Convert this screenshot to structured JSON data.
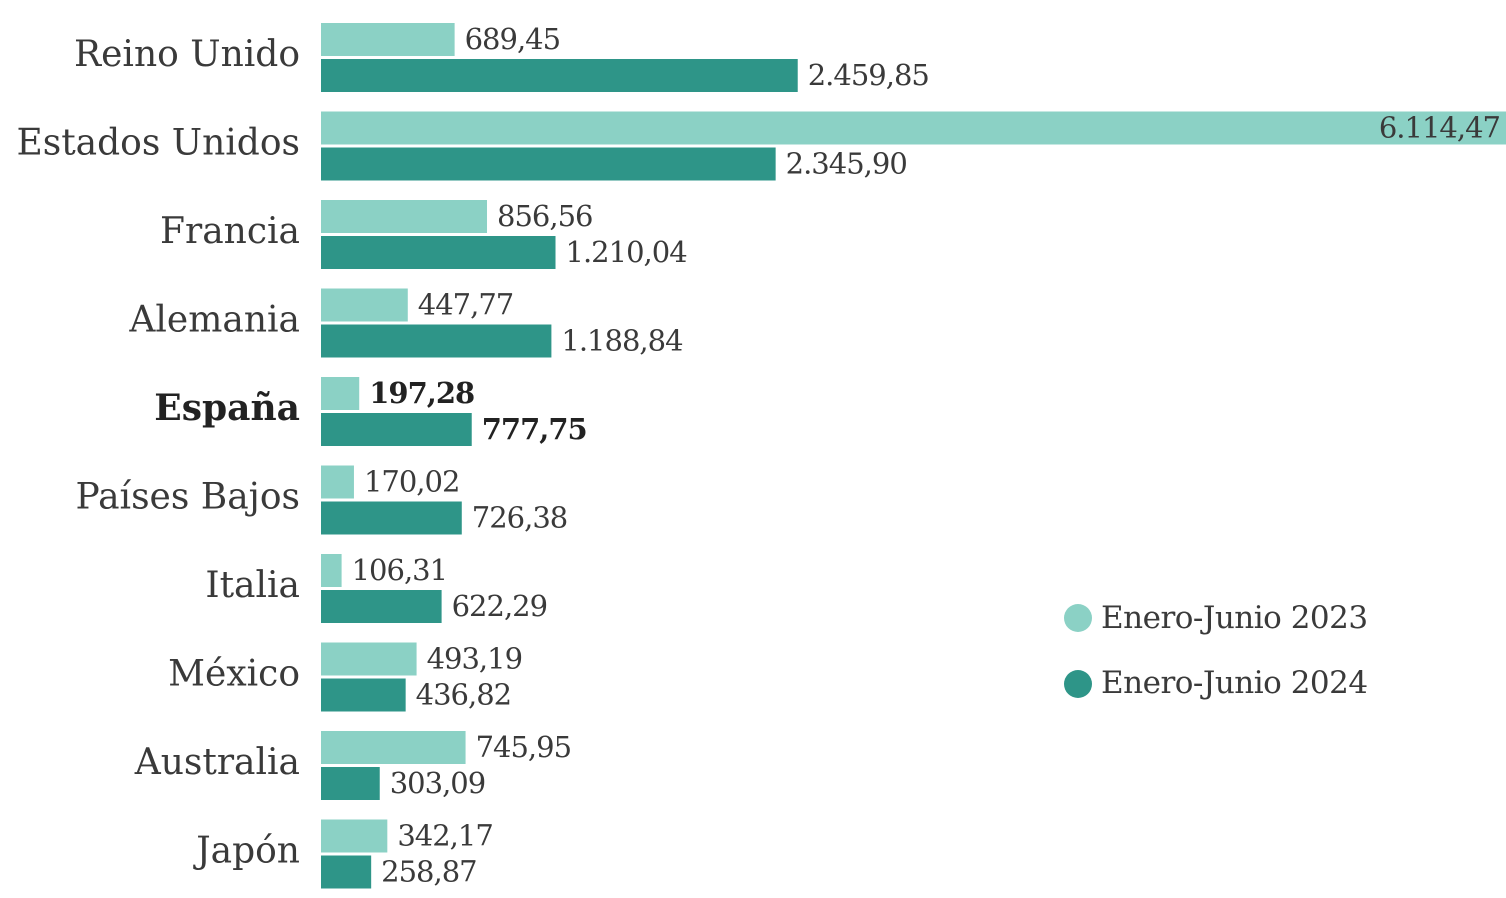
{
  "chart_data": {
    "type": "bar",
    "orientation": "horizontal",
    "categories": [
      "Reino Unido",
      "Estados Unidos",
      "Francia",
      "Alemania",
      "España",
      "Países Bajos",
      "Italia",
      "México",
      "Australia",
      "Japón"
    ],
    "highlight_category": "España",
    "series": [
      {
        "name": "Enero-Junio 2023",
        "color": "#8bd1c5",
        "values": [
          689.45,
          6114.47,
          856.56,
          447.77,
          197.28,
          170.02,
          106.31,
          493.19,
          745.95,
          342.17
        ],
        "labels": [
          "689,45",
          "6.114,47",
          "856,56",
          "447,77",
          "197,28",
          "170,02",
          "106,31",
          "493,19",
          "745,95",
          "342,17"
        ]
      },
      {
        "name": "Enero-Junio 2024",
        "color": "#2e9588",
        "values": [
          2459.85,
          2345.9,
          1210.04,
          1188.84,
          777.75,
          726.38,
          622.29,
          436.82,
          303.09,
          258.87
        ],
        "labels": [
          "2.459,85",
          "2.345,90",
          "1.210,04",
          "1.188,84",
          "777,75",
          "726,38",
          "622,29",
          "436,82",
          "303,09",
          "258,87"
        ]
      }
    ],
    "xlim": [
      0,
      6114.47
    ],
    "grid": false,
    "legend_position": "right"
  }
}
